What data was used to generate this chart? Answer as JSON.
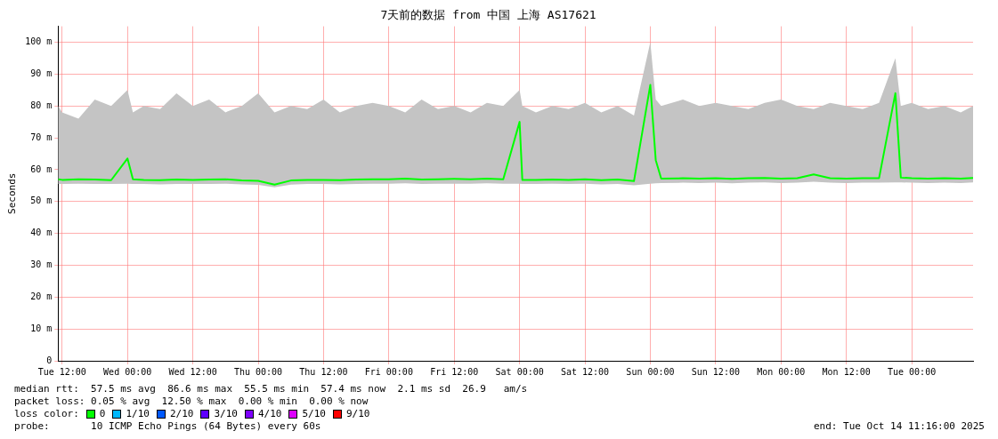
{
  "chart_data": {
    "type": "line",
    "title": "7天前的数据 from 中国 上海 AS17621",
    "ylabel": "Seconds",
    "x": [
      "2025-10-07T11:16",
      "2025-10-07T12:00",
      "2025-10-07T15:00",
      "2025-10-07T18:00",
      "2025-10-07T21:00",
      "2025-10-08T00:00",
      "2025-10-08T01:00",
      "2025-10-08T03:00",
      "2025-10-08T06:00",
      "2025-10-08T09:00",
      "2025-10-08T12:00",
      "2025-10-08T15:00",
      "2025-10-08T18:00",
      "2025-10-08T21:00",
      "2025-10-09T00:00",
      "2025-10-09T03:00",
      "2025-10-09T06:00",
      "2025-10-09T09:00",
      "2025-10-09T12:00",
      "2025-10-09T15:00",
      "2025-10-09T18:00",
      "2025-10-09T21:00",
      "2025-10-10T00:00",
      "2025-10-10T03:00",
      "2025-10-10T06:00",
      "2025-10-10T09:00",
      "2025-10-10T12:00",
      "2025-10-10T15:00",
      "2025-10-10T18:00",
      "2025-10-10T21:00",
      "2025-10-11T00:00",
      "2025-10-11T00:30",
      "2025-10-11T03:00",
      "2025-10-11T06:00",
      "2025-10-11T09:00",
      "2025-10-11T12:00",
      "2025-10-11T15:00",
      "2025-10-11T18:00",
      "2025-10-11T21:00",
      "2025-10-12T00:00",
      "2025-10-12T01:00",
      "2025-10-12T02:00",
      "2025-10-12T06:00",
      "2025-10-12T09:00",
      "2025-10-12T12:00",
      "2025-10-12T15:00",
      "2025-10-12T18:00",
      "2025-10-12T21:00",
      "2025-10-13T00:00",
      "2025-10-13T03:00",
      "2025-10-13T06:00",
      "2025-10-13T09:00",
      "2025-10-13T12:00",
      "2025-10-13T15:00",
      "2025-10-13T18:00",
      "2025-10-13T21:00",
      "2025-10-13T22:00",
      "2025-10-14T00:00",
      "2025-10-14T03:00",
      "2025-10-14T06:00",
      "2025-10-14T09:00",
      "2025-10-14T11:16"
    ],
    "series": [
      {
        "name": "0",
        "color": "#00ff00",
        "values": [
          57,
          56.8,
          57,
          56.9,
          56.7,
          63.5,
          57,
          56.8,
          56.7,
          56.9,
          56.8,
          56.9,
          57,
          56.6,
          56.5,
          55.3,
          56.6,
          56.8,
          56.8,
          56.7,
          56.9,
          57,
          57,
          57.2,
          56.9,
          57,
          57.1,
          57,
          57.2,
          57,
          75,
          56.8,
          56.8,
          56.9,
          56.8,
          57,
          56.7,
          56.9,
          56.4,
          86.6,
          63,
          57.2,
          57.3,
          57.2,
          57.3,
          57.1,
          57.3,
          57.4,
          57.2,
          57.3,
          58.5,
          57.3,
          57.2,
          57.3,
          57.3,
          84,
          57.5,
          57.3,
          57.2,
          57.3,
          57.2,
          57.4
        ],
        "lower": [
          55.5,
          55.5,
          55.6,
          55.5,
          55.5,
          55.6,
          55.5,
          55.5,
          55.4,
          55.5,
          55.5,
          55.5,
          55.6,
          55.4,
          55.2,
          54.5,
          55.3,
          55.5,
          55.5,
          55.4,
          55.5,
          55.6,
          55.6,
          55.7,
          55.5,
          55.6,
          55.6,
          55.6,
          55.7,
          55.6,
          55.6,
          55.5,
          55.5,
          55.6,
          55.5,
          55.6,
          55.4,
          55.5,
          55.1,
          55.6,
          55.7,
          55.8,
          55.9,
          55.8,
          55.9,
          55.7,
          55.9,
          56,
          55.8,
          55.9,
          56.2,
          55.9,
          55.8,
          55.9,
          55.9,
          56,
          56,
          55.9,
          55.8,
          55.9,
          55.8,
          56
        ],
        "upper": [
          80,
          78,
          76,
          82,
          80,
          85,
          78,
          80,
          79,
          84,
          80,
          82,
          78,
          80,
          84,
          78,
          80,
          79,
          82,
          78,
          80,
          81,
          80,
          78,
          82,
          79,
          80,
          78,
          81,
          80,
          85,
          80,
          78,
          80,
          79,
          81,
          78,
          80,
          77,
          100,
          82,
          80,
          82,
          80,
          81,
          80,
          79,
          81,
          82,
          80,
          79,
          81,
          80,
          79,
          81,
          95,
          80,
          81,
          79,
          80,
          78,
          80
        ]
      },
      {
        "name": "1/10",
        "color": "#00b8ff",
        "values": [
          null,
          null,
          null,
          null,
          null,
          null,
          null,
          null,
          null,
          null,
          null,
          null,
          null,
          null,
          null,
          null,
          null,
          null,
          null,
          null,
          null,
          null,
          null,
          null,
          null,
          null,
          null,
          null,
          null,
          null,
          null,
          null,
          null,
          null,
          null,
          null,
          null,
          null,
          null,
          null,
          null,
          null,
          null,
          null,
          null,
          null,
          null,
          null,
          null,
          null,
          null,
          null,
          null,
          null,
          null,
          null,
          null,
          null,
          null,
          null,
          null,
          null
        ]
      },
      {
        "name": "2/10",
        "color": "#0059ff",
        "values": [
          null,
          null,
          null,
          null,
          null,
          null,
          null,
          null,
          null,
          null,
          null,
          null,
          null,
          null,
          null,
          null,
          null,
          null,
          null,
          null,
          null,
          null,
          null,
          null,
          null,
          null,
          null,
          null,
          null,
          null,
          null,
          null,
          null,
          null,
          null,
          null,
          null,
          null,
          null,
          null,
          null,
          null,
          null,
          null,
          null,
          null,
          null,
          null,
          null,
          null,
          null,
          null,
          null,
          null,
          null,
          null,
          null,
          null,
          null,
          null,
          null,
          null
        ]
      },
      {
        "name": "3/10",
        "color": "#5e00ff",
        "values": [
          null,
          null,
          null,
          null,
          null,
          null,
          null,
          null,
          null,
          null,
          null,
          null,
          null,
          null,
          null,
          null,
          null,
          null,
          null,
          null,
          null,
          null,
          null,
          null,
          null,
          null,
          null,
          null,
          null,
          null,
          null,
          null,
          null,
          null,
          null,
          null,
          null,
          null,
          null,
          null,
          null,
          null,
          null,
          null,
          null,
          null,
          null,
          null,
          null,
          null,
          null,
          null,
          null,
          null,
          null,
          null,
          null,
          null,
          null,
          null,
          null,
          null
        ]
      },
      {
        "name": "4/10",
        "color": "#7e00ff",
        "values": [
          null,
          null,
          null,
          null,
          null,
          null,
          null,
          null,
          null,
          null,
          null,
          null,
          null,
          null,
          null,
          null,
          null,
          null,
          null,
          null,
          null,
          null,
          null,
          null,
          null,
          null,
          null,
          null,
          null,
          null,
          null,
          null,
          null,
          null,
          null,
          null,
          null,
          null,
          null,
          null,
          null,
          null,
          null,
          null,
          null,
          null,
          null,
          null,
          null,
          null,
          null,
          null,
          null,
          null,
          null,
          null,
          null,
          null,
          null,
          null,
          null,
          null
        ]
      },
      {
        "name": "5/10",
        "color": "#dd00ff",
        "values": [
          null,
          null,
          null,
          null,
          null,
          null,
          null,
          null,
          null,
          null,
          null,
          null,
          null,
          null,
          null,
          null,
          null,
          null,
          null,
          null,
          null,
          null,
          null,
          null,
          null,
          null,
          null,
          null,
          null,
          null,
          null,
          null,
          null,
          null,
          null,
          null,
          null,
          null,
          null,
          null,
          null,
          null,
          null,
          null,
          null,
          null,
          null,
          null,
          null,
          null,
          null,
          null,
          null,
          null,
          null,
          null,
          null,
          null,
          null,
          null,
          null,
          null
        ]
      },
      {
        "name": "9/10",
        "color": "#ff0000",
        "values": [
          null,
          null,
          null,
          null,
          null,
          null,
          null,
          null,
          null,
          null,
          null,
          null,
          null,
          null,
          null,
          null,
          null,
          null,
          null,
          null,
          null,
          null,
          null,
          null,
          null,
          null,
          null,
          null,
          null,
          null,
          null,
          null,
          null,
          null,
          null,
          null,
          null,
          null,
          null,
          null,
          null,
          null,
          null,
          null,
          null,
          null,
          null,
          null,
          null,
          null,
          null,
          null,
          null,
          null,
          null,
          null,
          null,
          null,
          null,
          null,
          null,
          null
        ]
      }
    ],
    "xlim": [
      "2025-10-07T11:16",
      "2025-10-14T11:16"
    ],
    "xticks": [
      {
        "value": "2025-10-07T12:00",
        "label": "Tue 12:00"
      },
      {
        "value": "2025-10-08T00:00",
        "label": "Wed 00:00"
      },
      {
        "value": "2025-10-08T12:00",
        "label": "Wed 12:00"
      },
      {
        "value": "2025-10-09T00:00",
        "label": "Thu 00:00"
      },
      {
        "value": "2025-10-09T12:00",
        "label": "Thu 12:00"
      },
      {
        "value": "2025-10-10T00:00",
        "label": "Fri 00:00"
      },
      {
        "value": "2025-10-10T12:00",
        "label": "Fri 12:00"
      },
      {
        "value": "2025-10-11T00:00",
        "label": "Sat 00:00"
      },
      {
        "value": "2025-10-11T12:00",
        "label": "Sat 12:00"
      },
      {
        "value": "2025-10-12T00:00",
        "label": "Sun 00:00"
      },
      {
        "value": "2025-10-12T12:00",
        "label": "Sun 12:00"
      },
      {
        "value": "2025-10-13T00:00",
        "label": "Mon 00:00"
      },
      {
        "value": "2025-10-13T12:00",
        "label": "Mon 12:00"
      },
      {
        "value": "2025-10-14T00:00",
        "label": "Tue 00:00"
      }
    ],
    "ylim": [
      0,
      105
    ],
    "yticks": [
      0,
      {
        "value": 10,
        "label": "10 m"
      },
      {
        "value": 20,
        "label": "20 m"
      },
      {
        "value": 30,
        "label": "30 m"
      },
      {
        "value": 40,
        "label": "40 m"
      },
      {
        "value": 50,
        "label": "50 m"
      },
      {
        "value": 60,
        "label": "60 m"
      },
      {
        "value": 70,
        "label": "70 m"
      },
      {
        "value": 80,
        "label": "80 m"
      },
      {
        "value": 90,
        "label": "90 m"
      },
      {
        "value": 100,
        "label": "100 m"
      }
    ],
    "grid": true,
    "legend": "bottom",
    "legend_title": "loss color:",
    "annotations": [
      "median rtt:  57.5 ms avg  86.6 ms max  55.5 ms min  57.4 ms now  2.1 ms sd  26.9   am/s",
      "packet loss: 0.05 % avg  12.50 % max  0.00 % min  0.00 % now",
      "probe:       10 ICMP Echo Pings (64 Bytes) every 60s",
      "end: Tue Oct 14 11:16:00 2025"
    ]
  }
}
